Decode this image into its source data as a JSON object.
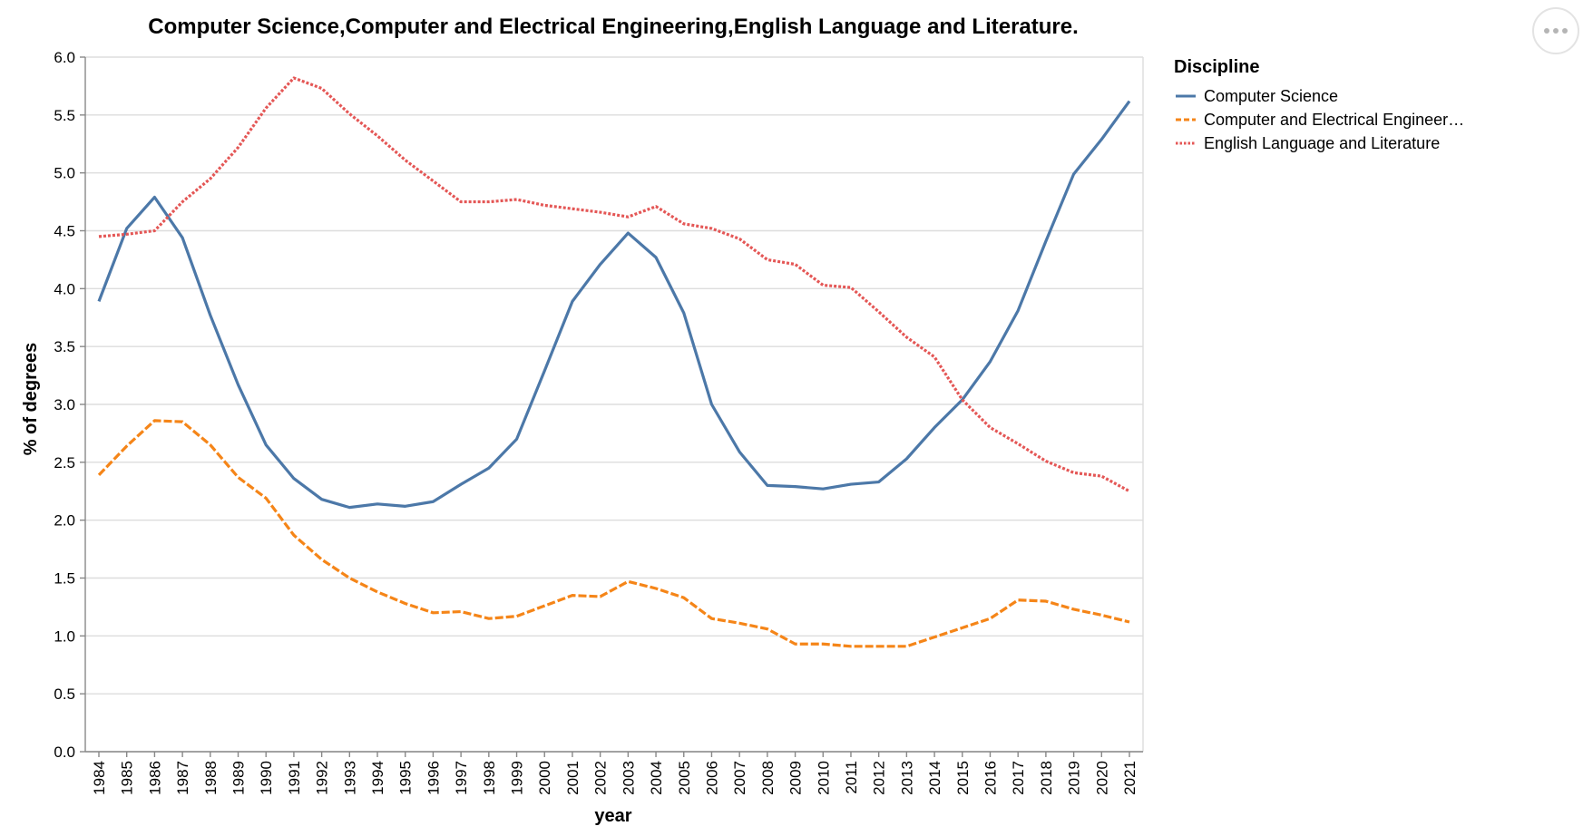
{
  "chart_data": {
    "type": "line",
    "title": "Computer Science,Computer and Electrical Engineering,English Language and Literature.",
    "xlabel": "year",
    "ylabel": "% of degrees",
    "ylim": [
      0,
      6
    ],
    "yticks": [
      "0.0",
      "0.5",
      "1.0",
      "1.5",
      "2.0",
      "2.5",
      "3.0",
      "3.5",
      "4.0",
      "4.5",
      "5.0",
      "5.5",
      "6.0"
    ],
    "grid": true,
    "legend_position": "right",
    "legend_title": "Discipline",
    "x": [
      "1984",
      "1985",
      "1986",
      "1987",
      "1988",
      "1989",
      "1990",
      "1991",
      "1992",
      "1993",
      "1994",
      "1995",
      "1996",
      "1997",
      "1998",
      "1999",
      "2000",
      "2001",
      "2002",
      "2003",
      "2004",
      "2005",
      "2006",
      "2007",
      "2008",
      "2009",
      "2010",
      "2011",
      "2012",
      "2013",
      "2014",
      "2015",
      "2016",
      "2017",
      "2018",
      "2019",
      "2020",
      "2021"
    ],
    "series": [
      {
        "name": "Computer Science",
        "legend_label": "Computer Science",
        "color": "#4c78a8",
        "dash": "solid",
        "values": [
          3.89,
          4.52,
          4.79,
          4.44,
          3.77,
          3.17,
          2.65,
          2.36,
          2.18,
          2.11,
          2.14,
          2.12,
          2.16,
          2.31,
          2.45,
          2.7,
          3.29,
          3.89,
          4.21,
          4.48,
          4.27,
          3.79,
          3.0,
          2.59,
          2.3,
          2.29,
          2.27,
          2.31,
          2.33,
          2.53,
          2.8,
          3.04,
          3.37,
          3.81,
          4.41,
          4.99,
          5.29,
          5.62
        ]
      },
      {
        "name": "Computer and Electrical Engineering",
        "legend_label": "Computer and Electrical Engineer…",
        "color": "#f58518",
        "dash": "dashed",
        "values": [
          2.39,
          2.64,
          2.86,
          2.85,
          2.65,
          2.37,
          2.19,
          1.87,
          1.66,
          1.5,
          1.38,
          1.28,
          1.2,
          1.21,
          1.15,
          1.17,
          1.26,
          1.35,
          1.34,
          1.47,
          1.41,
          1.33,
          1.15,
          1.11,
          1.06,
          0.93,
          0.93,
          0.91,
          0.91,
          0.91,
          0.99,
          1.07,
          1.15,
          1.31,
          1.3,
          1.23,
          1.18,
          1.12
        ]
      },
      {
        "name": "English Language and Literature",
        "legend_label": "English Language and Literature",
        "color": "#e45756",
        "dash": "dotted",
        "values": [
          4.45,
          4.47,
          4.5,
          4.75,
          4.95,
          5.22,
          5.56,
          5.82,
          5.73,
          5.51,
          5.32,
          5.11,
          4.93,
          4.75,
          4.75,
          4.77,
          4.72,
          4.69,
          4.66,
          4.62,
          4.71,
          4.56,
          4.52,
          4.43,
          4.25,
          4.21,
          4.03,
          4.01,
          3.8,
          3.58,
          3.41,
          3.04,
          2.8,
          2.66,
          2.51,
          2.41,
          2.38,
          2.25
        ]
      }
    ]
  }
}
